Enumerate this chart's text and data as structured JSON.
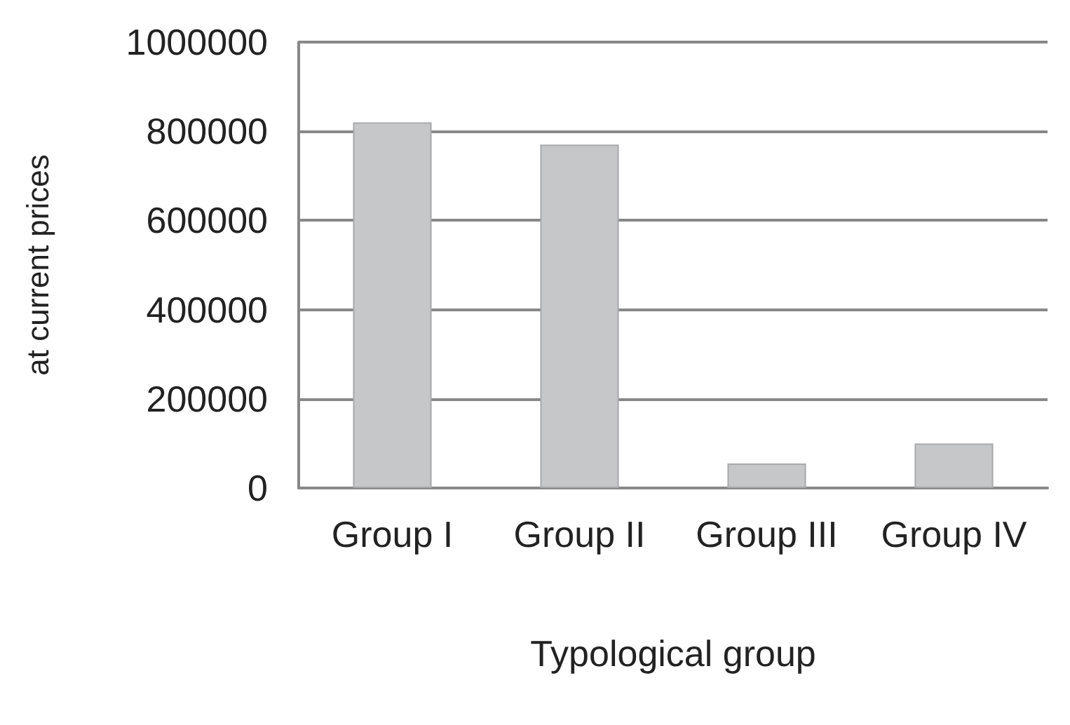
{
  "chart_data": {
    "type": "bar",
    "xlabel": "Typological group",
    "ylabel": "at current prices",
    "categories": [
      "Group I",
      "Group II",
      "Group III",
      "Group IV"
    ],
    "values": [
      820000,
      770000,
      55000,
      100000
    ],
    "color": "#c6c7c9",
    "ylim": [
      0,
      1000000
    ],
    "yticks": [
      0,
      200000,
      400000,
      600000,
      800000,
      1000000
    ],
    "grid": "y"
  }
}
